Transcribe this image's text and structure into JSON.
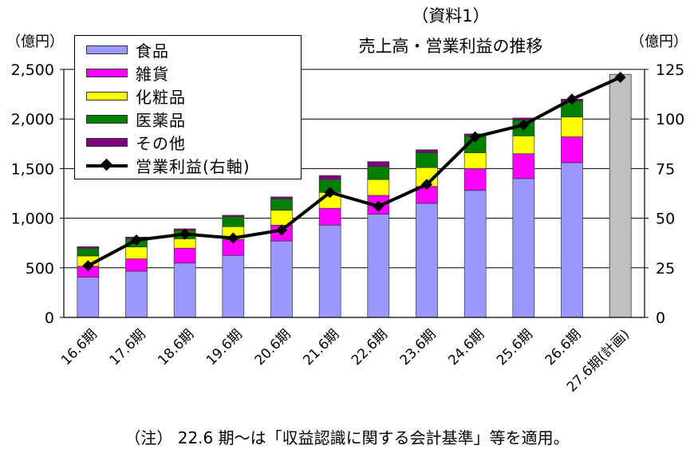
{
  "header": {
    "source_label": "（資料1）",
    "title": "売上高・営業利益の推移"
  },
  "note": "（注） 22.6 期～は「収益認識に関する会計基準」等を適用。",
  "chart_data": {
    "type": "bar",
    "stacked": true,
    "title": "売上高・営業利益の推移",
    "left_axis": {
      "unit": "（億円）",
      "ylim": [
        0,
        2500
      ],
      "ticks": [
        "0",
        "500",
        "1,000",
        "1,500",
        "2,000",
        "2,500"
      ]
    },
    "right_axis": {
      "unit": "（億円）",
      "ylim": [
        0,
        125
      ],
      "ticks": [
        "0",
        "25",
        "50",
        "75",
        "100",
        "125"
      ]
    },
    "categories": [
      "16.6期",
      "17.6期",
      "18.6期",
      "19.6期",
      "20.6期",
      "21.6期",
      "22.6期",
      "23.6期",
      "24.6期",
      "25.6期",
      "26.6期",
      "27.6期(計画)"
    ],
    "series": [
      {
        "name": "食品",
        "color": "#9999FF",
        "values": [
          405,
          465,
          548,
          625,
          770,
          930,
          1040,
          1150,
          1280,
          1400,
          1560,
          null
        ]
      },
      {
        "name": "雑貨",
        "color": "#FF00FF",
        "values": [
          110,
          125,
          150,
          160,
          160,
          170,
          190,
          170,
          220,
          250,
          260,
          null
        ]
      },
      {
        "name": "化粧品",
        "color": "#FFFF00",
        "values": [
          105,
          120,
          95,
          130,
          150,
          160,
          160,
          190,
          160,
          180,
          200,
          null
        ]
      },
      {
        "name": "医薬品",
        "color": "#008000",
        "values": [
          75,
          85,
          85,
          100,
          115,
          130,
          130,
          150,
          170,
          160,
          160,
          null
        ]
      },
      {
        "name": "その他",
        "color": "#800080",
        "values": [
          18,
          15,
          15,
          15,
          20,
          40,
          50,
          30,
          20,
          20,
          20,
          null
        ]
      }
    ],
    "plan_total": {
      "category": "27.6期(計画)",
      "value": 2450,
      "color": "#C0C0C0"
    },
    "line_series": {
      "name": "営業利益(右軸)",
      "axis": "right",
      "color": "#000000",
      "values": [
        26,
        39,
        42,
        40,
        44,
        63,
        56,
        67,
        91,
        97,
        110,
        121
      ]
    },
    "legend": [
      "食品",
      "雑貨",
      "化粧品",
      "医薬品",
      "その他",
      "営業利益(右軸)"
    ],
    "legend_position": "top-left",
    "grid": true
  }
}
